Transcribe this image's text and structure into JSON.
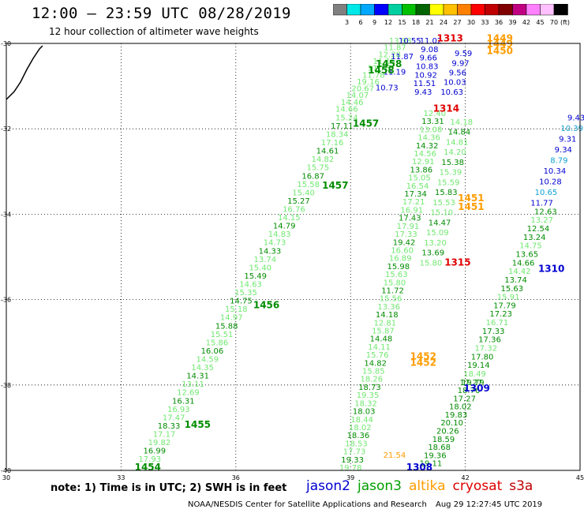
{
  "header": {
    "title": "12:00 – 23:59 UTC 08/28/2019",
    "subtitle": "12 hour collection of altimeter wave heights"
  },
  "colorbar": {
    "unit_label": "(ft)",
    "ticks": [
      "3",
      "6",
      "9",
      "12",
      "15",
      "18",
      "21",
      "24",
      "27",
      "30",
      "33",
      "36",
      "39",
      "42",
      "45",
      "70"
    ],
    "colors": [
      "#808080",
      "#00e8e8",
      "#00a8ff",
      "#0000ff",
      "#00d0a0",
      "#00c000",
      "#006400",
      "#ffff00",
      "#ffc000",
      "#ff8000",
      "#ff0000",
      "#c00000",
      "#800000",
      "#c00080",
      "#ff80ff",
      "#ffc0ff",
      "#000000"
    ]
  },
  "map": {
    "lon_range": [
      30,
      45
    ],
    "lat_range": [
      -40,
      -30
    ],
    "lon_ticks": [
      "30",
      "33",
      "36",
      "39",
      "42",
      "45"
    ],
    "lat_ticks": [
      "-30",
      "-32",
      "-34",
      "-36",
      "-38",
      "-40"
    ],
    "grid": true
  },
  "colors": {
    "light": "#70e870",
    "dark": "#008c00",
    "blue": "#0000d0",
    "red": "#e00000",
    "orange": "#ff9c00",
    "cyan": "#10a0d0"
  },
  "pass_labels": [
    {
      "text": "1454",
      "color": "dark",
      "lon": 33.7,
      "lat": -40.0
    },
    {
      "text": "1455",
      "color": "dark",
      "lon": 35.0,
      "lat": -39.0
    },
    {
      "text": "1456",
      "color": "dark",
      "lon": 36.8,
      "lat": -36.2
    },
    {
      "text": "1457",
      "color": "dark",
      "lon": 38.6,
      "lat": -33.4
    },
    {
      "text": "1457",
      "color": "dark",
      "lon": 39.4,
      "lat": -31.95
    },
    {
      "text": "1458",
      "color": "dark",
      "lon": 40.0,
      "lat": -30.55
    },
    {
      "text": "1458",
      "color": "dark",
      "lon": 39.8,
      "lat": -30.7
    },
    {
      "text": "1308",
      "color": "blue",
      "lon": 40.8,
      "lat": -40.0
    },
    {
      "text": "1309",
      "color": "blue",
      "lon": 42.3,
      "lat": -38.15
    },
    {
      "text": "1310",
      "color": "blue",
      "lon": 44.25,
      "lat": -35.35
    },
    {
      "text": "1315",
      "color": "red",
      "lon": 41.8,
      "lat": -35.2
    },
    {
      "text": "1314",
      "color": "red",
      "lon": 41.5,
      "lat": -31.6
    },
    {
      "text": "1313",
      "color": "red",
      "lon": 41.6,
      "lat": -29.95
    },
    {
      "text": "1451",
      "color": "orange",
      "lon": 42.15,
      "lat": -33.7
    },
    {
      "text": "1451",
      "color": "orange",
      "lon": 42.15,
      "lat": -33.9
    },
    {
      "text": "1452",
      "color": "orange",
      "lon": 40.9,
      "lat": -37.4
    },
    {
      "text": "1452",
      "color": "orange",
      "lon": 40.9,
      "lat": -37.55
    },
    {
      "text": "1449",
      "color": "orange",
      "lon": 42.9,
      "lat": -29.95
    },
    {
      "text": "1449",
      "color": "orange",
      "lon": 42.9,
      "lat": -30.08
    },
    {
      "text": "1450",
      "color": "orange",
      "lon": 42.9,
      "lat": -30.25
    }
  ],
  "tracks": [
    {
      "id": "pass-1454-1457",
      "color": "light",
      "start": [
        33.75,
        -39.8
      ],
      "end": [
        38.9,
        -31.8
      ],
      "altcolor": "dark",
      "values": [
        "17.93",
        "16.99",
        "19.82",
        "17.17",
        "18.33",
        "17.47",
        "16.93",
        "16.31",
        "12.69",
        "13.11",
        "14.31",
        "14.35",
        "14.59",
        "16.06",
        "15.86",
        "15.51",
        "15.88",
        "14.97",
        "15.18",
        "14.75",
        "15.35",
        "14.63",
        "15.49",
        "15.40",
        "13.74",
        "14.33",
        "14.73",
        "14.83",
        "14.79",
        "14.15",
        "16.76",
        "15.27",
        "15.40",
        "15.58",
        "16.87",
        "15.75",
        "14.82",
        "14.61",
        "17.16",
        "18.34",
        "17.11",
        "15.24"
      ]
    },
    {
      "id": "pass-1457-1458",
      "color": "light",
      "start": [
        38.9,
        -31.6
      ],
      "end": [
        40.3,
        -30.0
      ],
      "altcolor": "light",
      "values": [
        "14.66",
        "14.46",
        "14.07",
        "20.67",
        "19.16",
        "11.78",
        "11.78",
        "11.15",
        "12.28",
        "11.87",
        "13.98"
      ]
    },
    {
      "id": "pass-jason2-north",
      "color": "blue",
      "start": [
        40.55,
        -30.0
      ],
      "end": [
        39.95,
        -31.1
      ],
      "altcolor": "blue",
      "values": [
        "10.55",
        "11.87",
        "11.19",
        "10.73"
      ]
    },
    {
      "id": "pass-jason3-a",
      "color": "light",
      "start": [
        39.0,
        -40.0
      ],
      "end": [
        41.2,
        -31.7
      ],
      "altcolor": "dark",
      "values": [
        "19.78",
        "19.33",
        "17.73",
        "18.53",
        "18.36",
        "18.02",
        "18.44",
        "18.03",
        "18.32",
        "19.35",
        "18.73",
        "18.26",
        "15.85",
        "14.82",
        "15.76",
        "14.11",
        "14.48",
        "15.87",
        "12.81",
        "14.18",
        "13.36",
        "15.56",
        "11.72",
        "15.80",
        "15.63",
        "15.98",
        "16.89",
        "16.60",
        "19.42",
        "17.33",
        "17.91",
        "17.43",
        "16.91",
        "17.21",
        "17.34",
        "16.54",
        "15.05",
        "13.86",
        "12.91",
        "14.56",
        "14.32",
        "14.36",
        "13.08",
        "13.31",
        "12.40"
      ]
    },
    {
      "id": "pass-jason3-b",
      "color": "light",
      "start": [
        41.1,
        -35.2
      ],
      "end": [
        41.9,
        -31.9
      ],
      "altcolor": "dark",
      "values": [
        "15.80",
        "13.69",
        "13.20",
        "15.09",
        "14.47",
        "15.10",
        "15.53",
        "15.83",
        "15.59",
        "15.39",
        "15.38",
        "14.20",
        "14.81",
        "14.84",
        "14.18"
      ]
    },
    {
      "id": "pass-jason2-mid",
      "color": "blue",
      "start": [
        41.1,
        -30.0
      ],
      "end": [
        40.9,
        -31.2
      ],
      "altcolor": "blue",
      "values": [
        "11.02",
        "9.08",
        "9.66",
        "10.83",
        "10.92",
        "11.51",
        "9.43"
      ]
    },
    {
      "id": "pass-jason2-right",
      "color": "blue",
      "start": [
        41.95,
        -30.3
      ],
      "end": [
        41.65,
        -31.2
      ],
      "altcolor": "blue",
      "values": [
        "9.59",
        "9.97",
        "9.56",
        "10.03",
        "10.63"
      ]
    },
    {
      "id": "pass-1308-1309",
      "color": "dark",
      "start": [
        41.1,
        -39.9
      ],
      "end": [
        42.2,
        -38.0
      ],
      "altcolor": "dark",
      "values": [
        "19.11",
        "19.36",
        "18.68",
        "18.59",
        "20.26",
        "20.10",
        "19.83",
        "18.02",
        "17.27",
        "18.76",
        "19.79"
      ]
    },
    {
      "id": "pass-1309-1310",
      "color": "dark",
      "start": [
        42.15,
        -38.0
      ],
      "end": [
        44.1,
        -34.0
      ],
      "altcolor": "light",
      "values": [
        "17.27",
        "18.49",
        "19.14",
        "17.80",
        "17.32",
        "17.36",
        "17.33",
        "16.71",
        "17.23",
        "17.79",
        "15.91",
        "15.63",
        "13.74",
        "14.42",
        "14.66",
        "13.65",
        "14.75",
        "13.24",
        "12.54",
        "13.27",
        "12.63"
      ]
    },
    {
      "id": "pass-1310-north",
      "color": "blue",
      "start": [
        44.0,
        -33.8
      ],
      "end": [
        44.9,
        -31.8
      ],
      "altcolor": "cyan",
      "values": [
        "11.77",
        "10.65",
        "10.28",
        "10.34",
        "8.79",
        "9.34",
        "9.31",
        "10.39",
        "9.43"
      ]
    },
    {
      "id": "pass-altika-bottom",
      "color": "orange",
      "start": [
        40.15,
        -39.7
      ],
      "end": [
        40.15,
        -39.7
      ],
      "altcolor": "orange",
      "values": [
        "21.54"
      ]
    }
  ],
  "note": "note: 1) Time is in UTC; 2) SWH is in feet",
  "legend": [
    {
      "label": "jason2",
      "color": "#0000d0"
    },
    {
      "label": "jason3",
      "color": "#00a000"
    },
    {
      "label": "altika",
      "color": "#ff9c00"
    },
    {
      "label": "cryosat",
      "color": "#e00000"
    },
    {
      "label": "s3a",
      "color": "#c00000"
    }
  ],
  "footer": {
    "credit": "NOAA/NESDIS Center for Satellite Applications and Research",
    "timestamp": "Aug 29 12:27:45 UTC 2019"
  }
}
